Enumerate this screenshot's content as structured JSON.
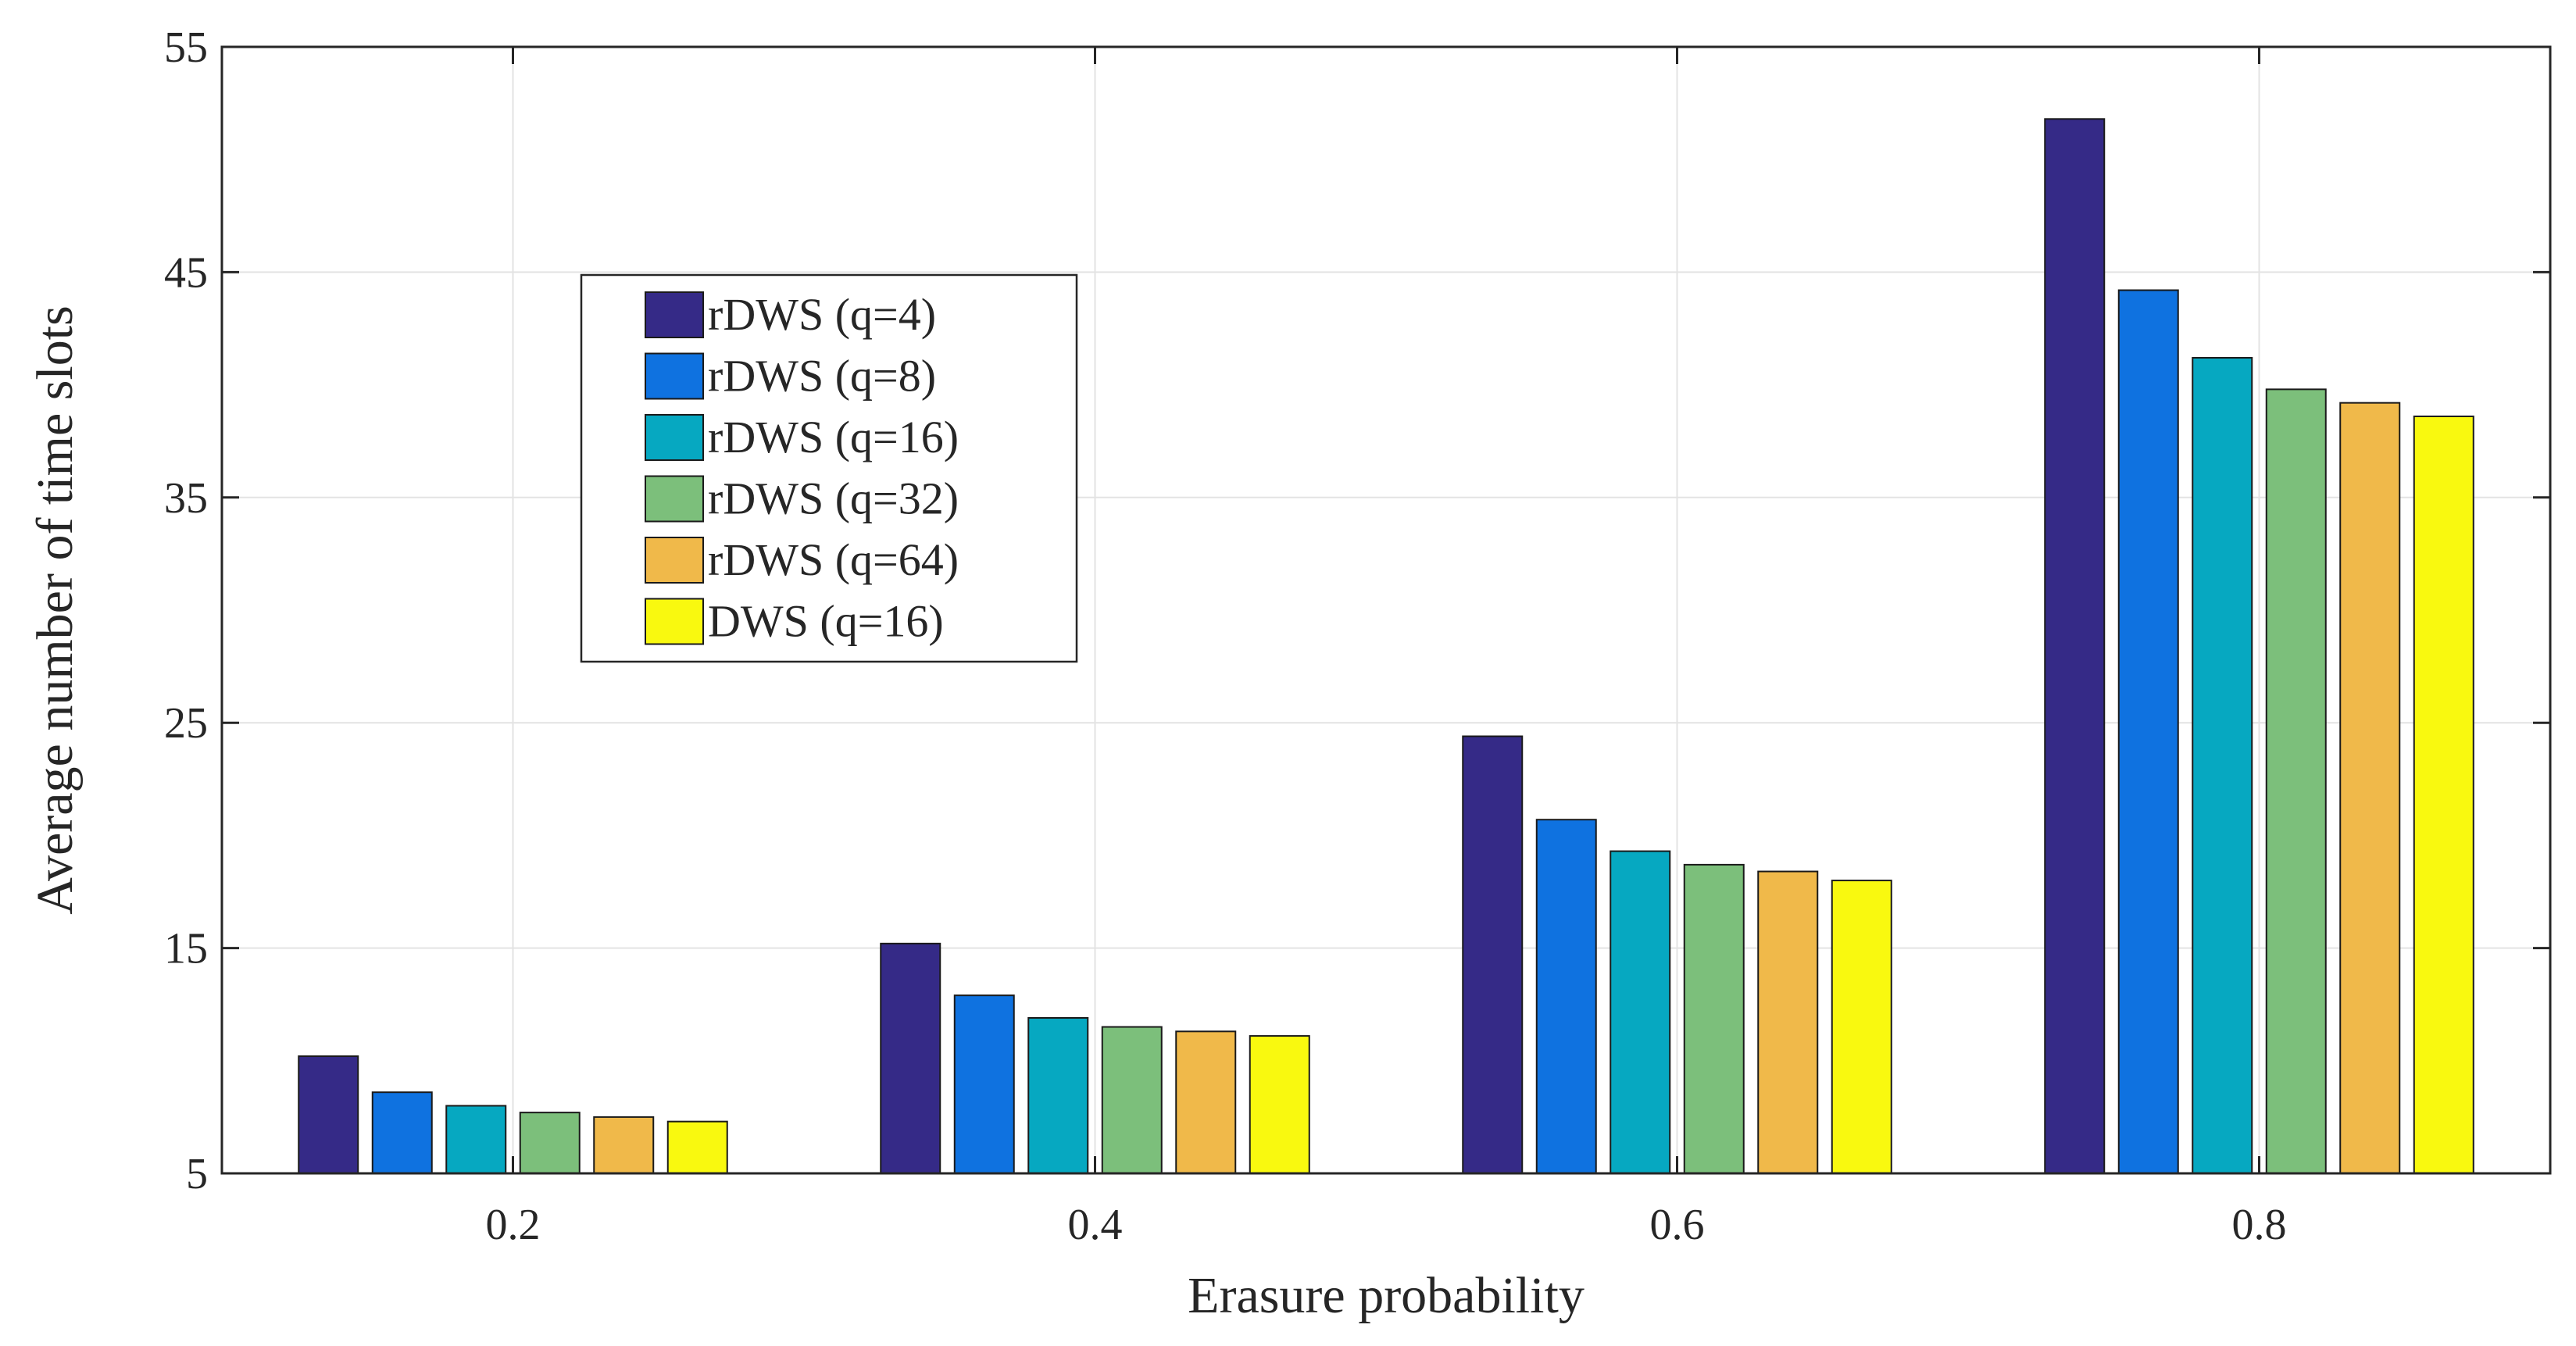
{
  "chart_data": {
    "type": "bar",
    "title": "",
    "xlabel": "Erasure probability",
    "ylabel": "Average number of time slots",
    "categories": [
      "0.2",
      "0.4",
      "0.6",
      "0.8"
    ],
    "ylim": [
      5,
      55
    ],
    "yticks": [
      "5",
      "15",
      "25",
      "35",
      "45",
      "55"
    ],
    "grid": true,
    "legend_position": "upper-left",
    "series": [
      {
        "name": "rDWS (q=4)",
        "color": "#352a87",
        "values": [
          10.2,
          15.2,
          24.4,
          51.8
        ]
      },
      {
        "name": "rDWS (q=8)",
        "color": "#0f72e0",
        "values": [
          8.6,
          12.9,
          20.7,
          44.2
        ]
      },
      {
        "name": "rDWS (q=16)",
        "color": "#06a8c1",
        "values": [
          8.0,
          11.9,
          19.3,
          41.2
        ]
      },
      {
        "name": "rDWS (q=32)",
        "color": "#7cbf7b",
        "values": [
          7.7,
          11.5,
          18.7,
          39.8
        ]
      },
      {
        "name": "rDWS (q=64)",
        "color": "#f0b94a",
        "values": [
          7.5,
          11.3,
          18.4,
          39.2
        ]
      },
      {
        "name": "DWS (q=16)",
        "color": "#f9f90f",
        "values": [
          7.3,
          11.1,
          18.0,
          38.6
        ]
      }
    ]
  }
}
